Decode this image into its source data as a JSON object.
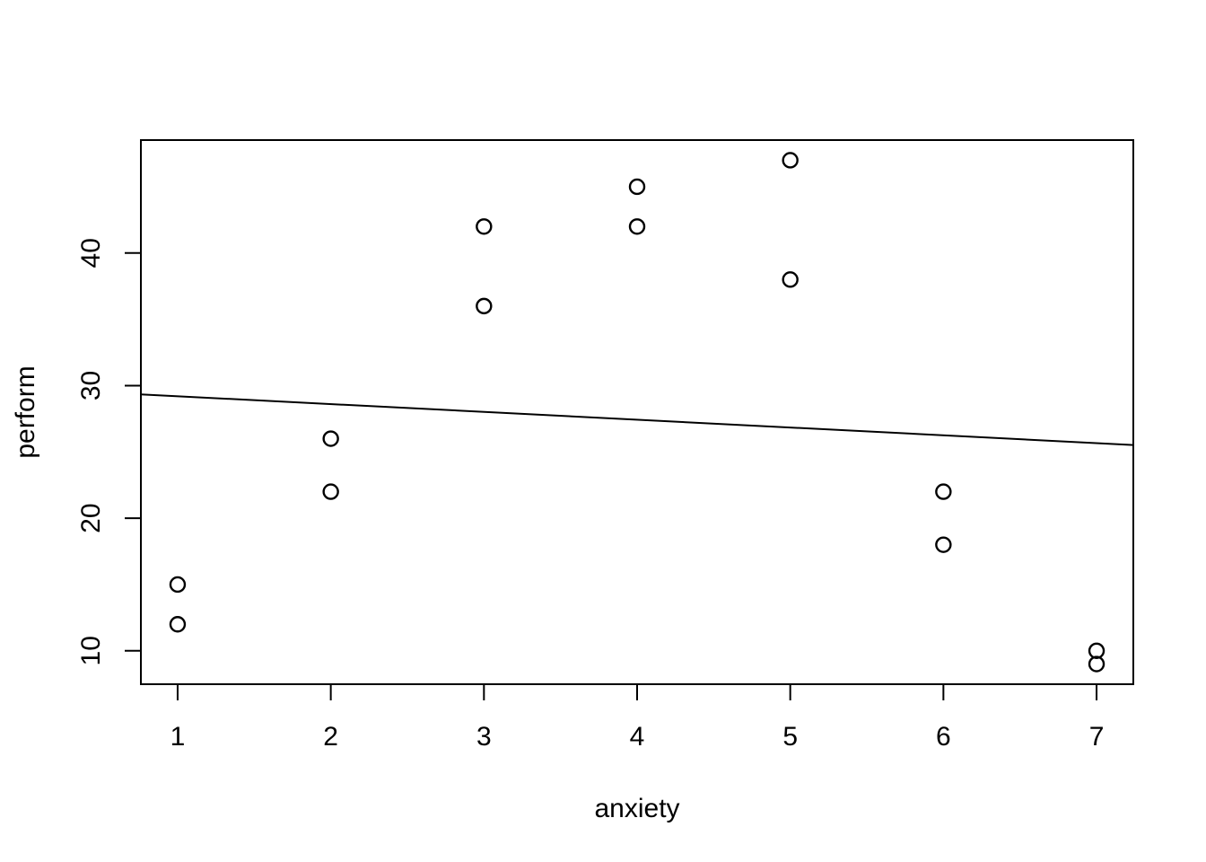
{
  "colors": {
    "foreground": "#000000",
    "background": "#ffffff"
  },
  "chart_data": {
    "type": "scatter",
    "title": "",
    "xlabel": "anxiety",
    "ylabel": "perform",
    "marker": "open-circle",
    "grid": false,
    "legend": null,
    "points": [
      [
        1,
        15
      ],
      [
        1,
        12
      ],
      [
        2,
        26
      ],
      [
        2,
        22
      ],
      [
        3,
        42
      ],
      [
        3,
        36
      ],
      [
        4,
        45
      ],
      [
        4,
        42
      ],
      [
        5,
        47
      ],
      [
        5,
        38
      ],
      [
        6,
        22
      ],
      [
        6,
        18
      ],
      [
        7,
        10
      ],
      [
        7,
        9
      ]
    ],
    "regression_line": {
      "slope": -0.589,
      "intercept": 29.786
    },
    "xticks": [
      1,
      2,
      3,
      4,
      5,
      6,
      7
    ],
    "yticks": [
      10,
      20,
      30,
      40
    ],
    "xlim": [
      0.76,
      7.24
    ],
    "ylim": [
      7.48,
      48.52
    ],
    "point_color": "#000000",
    "line_color": "#000000"
  }
}
